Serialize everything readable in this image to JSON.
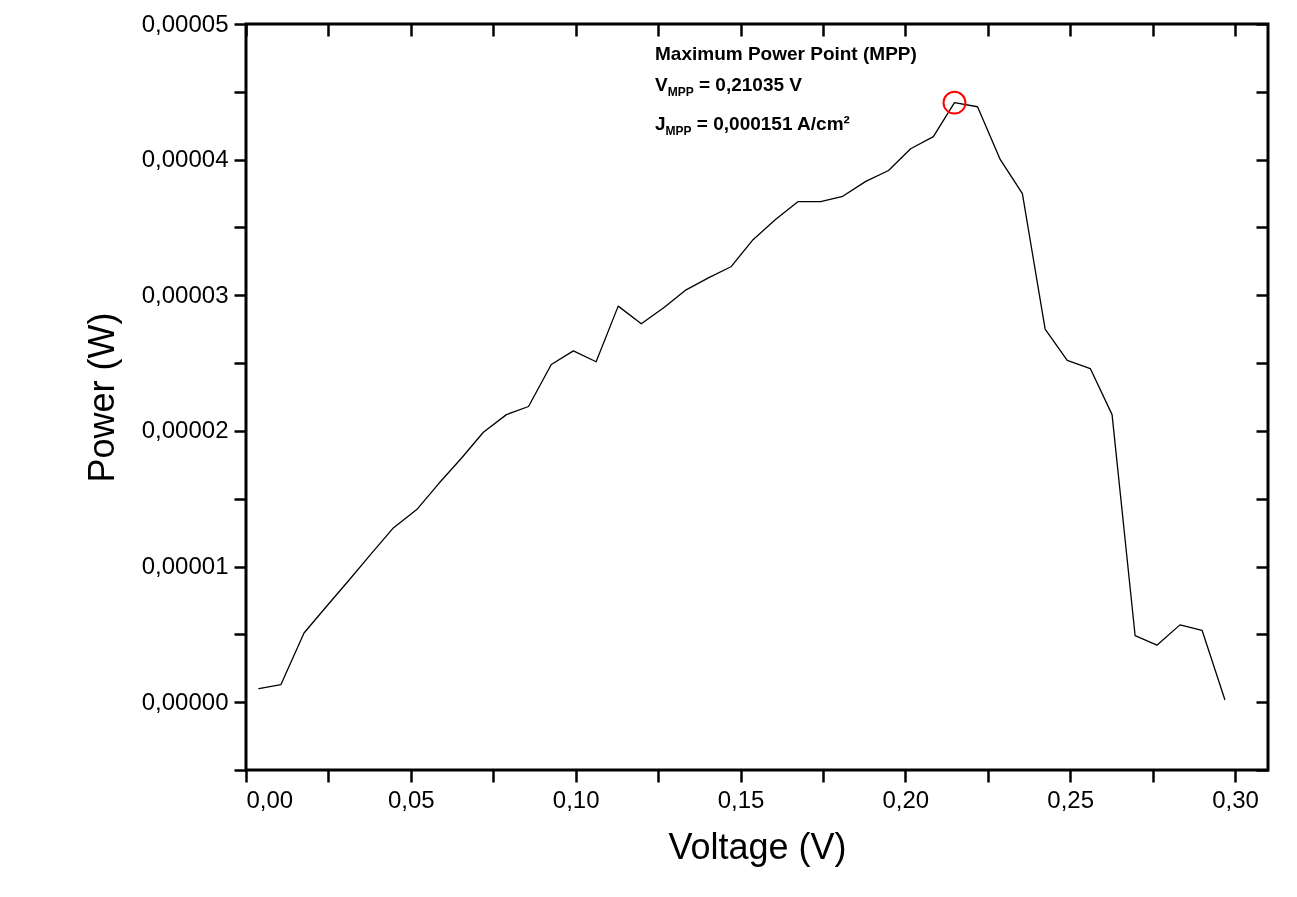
{
  "chart_data": {
    "type": "line",
    "xlabel": "Voltage (V)",
    "ylabel": "Power (W)",
    "annotations": [
      "Maximum Power Point (MPP)",
      "V$_{MPP}$ = 0,21035 V",
      "J$_{MPP}$ = 0,000151 A/cm²"
    ],
    "x": [
      0.0039,
      0.0106,
      0.0176,
      0.0242,
      0.0309,
      0.0375,
      0.0445,
      0.0518,
      0.0584,
      0.0654,
      0.072,
      0.079,
      0.0857,
      0.0926,
      0.0993,
      0.1062,
      0.1129,
      0.1199,
      0.1268,
      0.1335,
      0.1404,
      0.1471,
      0.1538,
      0.1607,
      0.1674,
      0.1743,
      0.181,
      0.188,
      0.1949,
      0.2016,
      0.2085,
      0.2149,
      0.2219,
      0.2288,
      0.2355,
      0.2424,
      0.2491,
      0.2561,
      0.2627,
      0.2697,
      0.2763,
      0.2833,
      0.29,
      0.2969
    ],
    "series": [
      {
        "color": "#000000",
        "values": [
          1e-06,
          1.3e-06,
          5.1e-06,
          7e-06,
          8.9e-06,
          1.08e-05,
          1.28e-05,
          1.42e-05,
          1.61e-05,
          1.8e-05,
          1.99e-05,
          2.12e-05,
          2.18e-05,
          2.49e-05,
          2.59e-05,
          2.51e-05,
          2.92e-05,
          2.79e-05,
          2.91e-05,
          3.04e-05,
          3.13e-05,
          3.21e-05,
          3.41e-05,
          3.56e-05,
          3.69e-05,
          3.69e-05,
          3.73e-05,
          3.84e-05,
          3.92e-05,
          4.08e-05,
          4.17e-05,
          4.42e-05,
          4.39e-05,
          4e-05,
          3.75e-05,
          2.75e-05,
          2.52e-05,
          2.46e-05,
          2.12e-05,
          4.9e-06,
          4.2e-06,
          5.7e-06,
          5.3e-06,
          2e-07
        ]
      },
      {
        "type": "scatter",
        "color": "#ff0000",
        "marker": "circle",
        "x": [
          0.2149
        ],
        "values": [
          4.42e-05
        ]
      }
    ],
    "xlim": [
      0,
      0.31
    ],
    "ylim": [
      -5e-06,
      5e-05
    ],
    "xticks": [
      {
        "value": 0,
        "label": "0,00"
      },
      {
        "value": 0.025,
        "label": null
      },
      {
        "value": 0.05,
        "label": "0,05"
      },
      {
        "value": 0.075,
        "label": null
      },
      {
        "value": 0.1,
        "label": "0,10"
      },
      {
        "value": 0.125,
        "label": null
      },
      {
        "value": 0.15,
        "label": "0,15"
      },
      {
        "value": 0.175,
        "label": null
      },
      {
        "value": 0.2,
        "label": "0,20"
      },
      {
        "value": 0.225,
        "label": null
      },
      {
        "value": 0.25,
        "label": "0,25"
      },
      {
        "value": 0.275,
        "label": null
      },
      {
        "value": 0.3,
        "label": "0,30"
      }
    ],
    "yticks": [
      {
        "value": -5e-06,
        "label": null
      },
      {
        "value": 0,
        "label": "0,00000"
      },
      {
        "value": 5e-06,
        "label": null
      },
      {
        "value": 1e-05,
        "label": "0,00001"
      },
      {
        "value": 1.5e-05,
        "label": null
      },
      {
        "value": 2e-05,
        "label": "0,00002"
      },
      {
        "value": 2.5e-05,
        "label": null
      },
      {
        "value": 3e-05,
        "label": "0,00003"
      },
      {
        "value": 3.5e-05,
        "label": null
      },
      {
        "value": 4e-05,
        "label": "0,00004"
      },
      {
        "value": 4.5e-05,
        "label": null
      },
      {
        "value": 5e-05,
        "label": "0,00005"
      }
    ],
    "grid": false,
    "line_style": "solid"
  }
}
